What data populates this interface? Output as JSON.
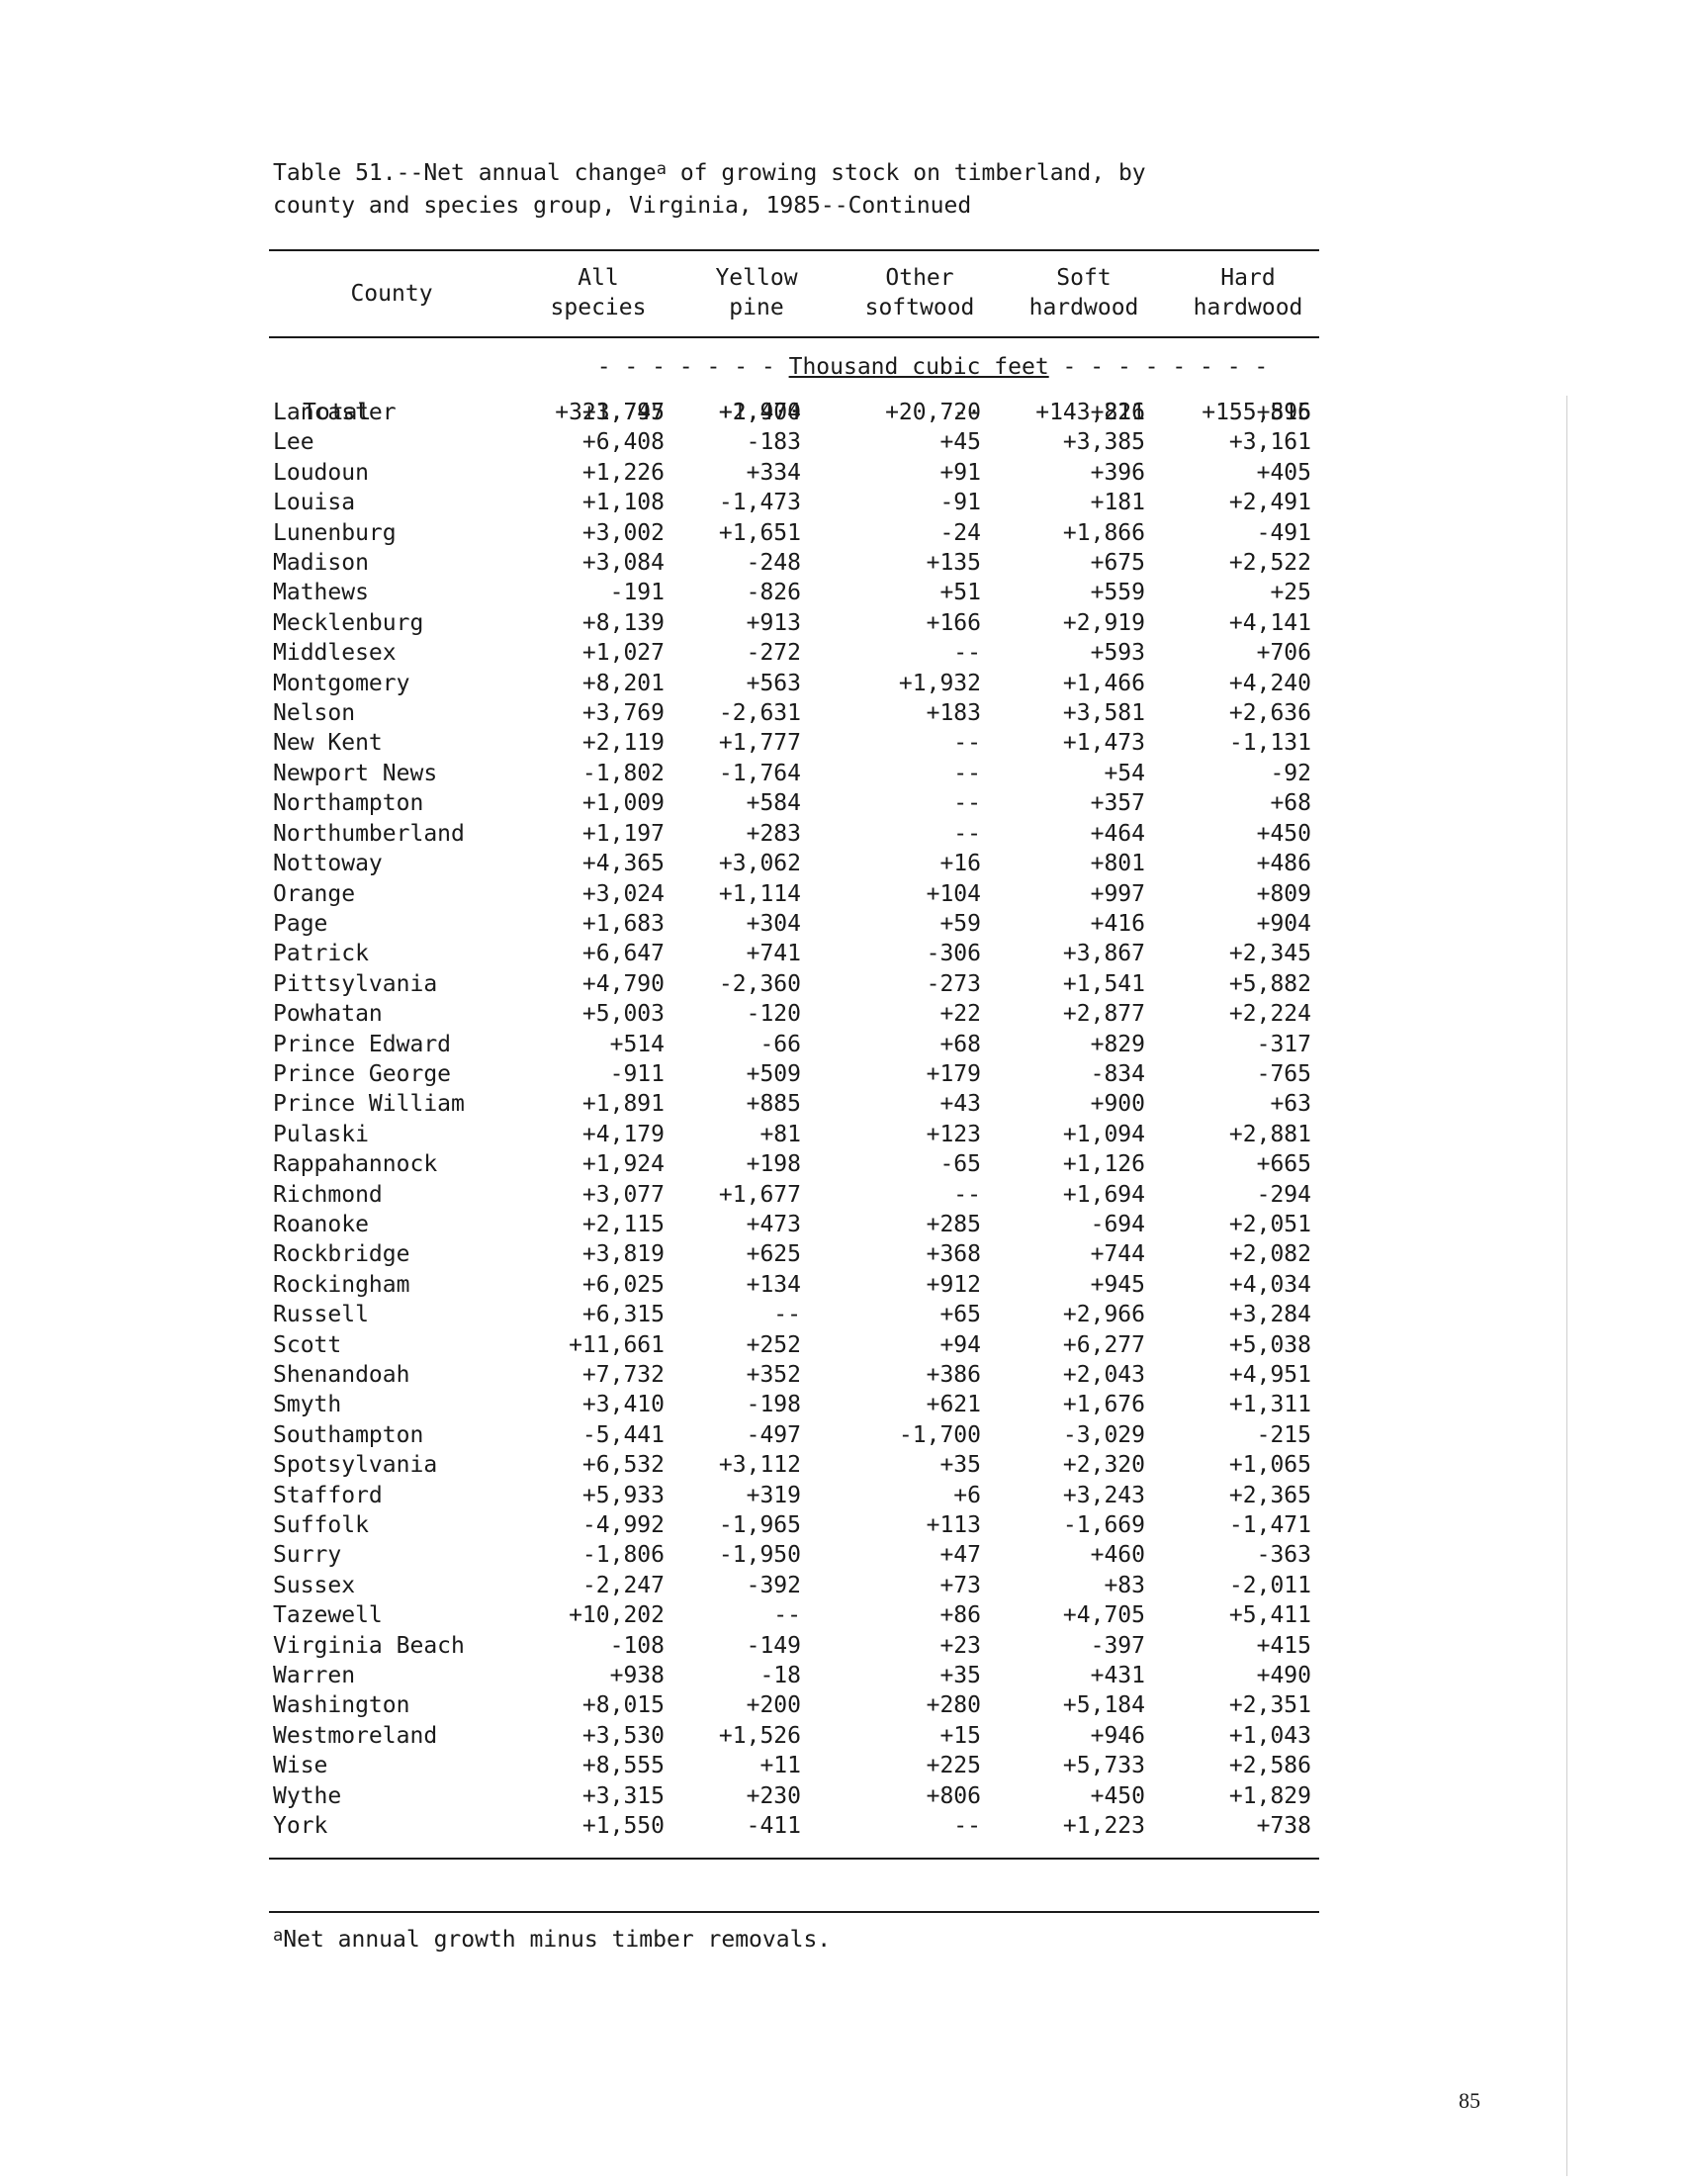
{
  "title": {
    "part1": "Table 51.--Net annual change",
    "superscript": "a",
    "part2": " of growing stock on timberland, by",
    "line2": "county and species group, Virginia, 1985--Continued"
  },
  "columns": {
    "county": "County",
    "all_species": [
      "All",
      "species"
    ],
    "yellow_pine": [
      "Yellow",
      "pine"
    ],
    "other_softwood": [
      "Other",
      "softwood"
    ],
    "soft_hardwood": [
      "Soft",
      "hardwood"
    ],
    "hard_hardwood": [
      "Hard",
      "hardwood"
    ]
  },
  "unit": {
    "prefix": "- - - - - - - ",
    "label": "Thousand cubic feet",
    "suffix": " - - - - - - - -"
  },
  "rows": [
    [
      "Lancaster",
      "+3,745",
      "+2,404",
      "--",
      "+826",
      "+515"
    ],
    [
      "Lee",
      "+6,408",
      "-183",
      "+45",
      "+3,385",
      "+3,161"
    ],
    [
      "Loudoun",
      "+1,226",
      "+334",
      "+91",
      "+396",
      "+405"
    ],
    [
      "Louisa",
      "+1,108",
      "-1,473",
      "-91",
      "+181",
      "+2,491"
    ],
    [
      "Lunenburg",
      "+3,002",
      "+1,651",
      "-24",
      "+1,866",
      "-491"
    ],
    [
      "Madison",
      "+3,084",
      "-248",
      "+135",
      "+675",
      "+2,522"
    ],
    [
      "Mathews",
      "-191",
      "-826",
      "+51",
      "+559",
      "+25"
    ],
    [
      "Mecklenburg",
      "+8,139",
      "+913",
      "+166",
      "+2,919",
      "+4,141"
    ],
    [
      "Middlesex",
      "+1,027",
      "-272",
      "--",
      "+593",
      "+706"
    ],
    [
      "Montgomery",
      "+8,201",
      "+563",
      "+1,932",
      "+1,466",
      "+4,240"
    ],
    [
      "Nelson",
      "+3,769",
      "-2,631",
      "+183",
      "+3,581",
      "+2,636"
    ],
    [
      "New Kent",
      "+2,119",
      "+1,777",
      "--",
      "+1,473",
      "-1,131"
    ],
    [
      "Newport News",
      "-1,802",
      "-1,764",
      "--",
      "+54",
      "-92"
    ],
    [
      "Northampton",
      "+1,009",
      "+584",
      "--",
      "+357",
      "+68"
    ],
    [
      "Northumberland",
      "+1,197",
      "+283",
      "--",
      "+464",
      "+450"
    ],
    [
      "Nottoway",
      "+4,365",
      "+3,062",
      "+16",
      "+801",
      "+486"
    ],
    [
      "Orange",
      "+3,024",
      "+1,114",
      "+104",
      "+997",
      "+809"
    ],
    [
      "Page",
      "+1,683",
      "+304",
      "+59",
      "+416",
      "+904"
    ],
    [
      "Patrick",
      "+6,647",
      "+741",
      "-306",
      "+3,867",
      "+2,345"
    ],
    [
      "Pittsylvania",
      "+4,790",
      "-2,360",
      "-273",
      "+1,541",
      "+5,882"
    ],
    [
      "Powhatan",
      "+5,003",
      "-120",
      "+22",
      "+2,877",
      "+2,224"
    ],
    [
      "Prince Edward",
      "+514",
      "-66",
      "+68",
      "+829",
      "-317"
    ],
    [
      "Prince George",
      "-911",
      "+509",
      "+179",
      "-834",
      "-765"
    ],
    [
      "Prince William",
      "+1,891",
      "+885",
      "+43",
      "+900",
      "+63"
    ],
    [
      "Pulaski",
      "+4,179",
      "+81",
      "+123",
      "+1,094",
      "+2,881"
    ],
    [
      "Rappahannock",
      "+1,924",
      "+198",
      "-65",
      "+1,126",
      "+665"
    ],
    [
      "Richmond",
      "+3,077",
      "+1,677",
      "--",
      "+1,694",
      "-294"
    ],
    [
      "Roanoke",
      "+2,115",
      "+473",
      "+285",
      "-694",
      "+2,051"
    ],
    [
      "Rockbridge",
      "+3,819",
      "+625",
      "+368",
      "+744",
      "+2,082"
    ],
    [
      "Rockingham",
      "+6,025",
      "+134",
      "+912",
      "+945",
      "+4,034"
    ],
    [
      "Russell",
      "+6,315",
      "--",
      "+65",
      "+2,966",
      "+3,284"
    ],
    [
      "Scott",
      "+11,661",
      "+252",
      "+94",
      "+6,277",
      "+5,038"
    ],
    [
      "Shenandoah",
      "+7,732",
      "+352",
      "+386",
      "+2,043",
      "+4,951"
    ],
    [
      "Smyth",
      "+3,410",
      "-198",
      "+621",
      "+1,676",
      "+1,311"
    ],
    [
      "Southampton",
      "-5,441",
      "-497",
      "-1,700",
      "-3,029",
      "-215"
    ],
    [
      "Spotsylvania",
      "+6,532",
      "+3,112",
      "+35",
      "+2,320",
      "+1,065"
    ],
    [
      "Stafford",
      "+5,933",
      "+319",
      "+6",
      "+3,243",
      "+2,365"
    ],
    [
      "Suffolk",
      "-4,992",
      "-1,965",
      "+113",
      "-1,669",
      "-1,471"
    ],
    [
      "Surry",
      "-1,806",
      "-1,950",
      "+47",
      "+460",
      "-363"
    ],
    [
      "Sussex",
      "-2,247",
      "-392",
      "+73",
      "+83",
      "-2,011"
    ],
    [
      "Tazewell",
      "+10,202",
      "--",
      "+86",
      "+4,705",
      "+5,411"
    ],
    [
      "Virginia Beach",
      "-108",
      "-149",
      "+23",
      "-397",
      "+415"
    ],
    [
      "Warren",
      "+938",
      "-18",
      "+35",
      "+431",
      "+490"
    ],
    [
      "Washington",
      "+8,015",
      "+200",
      "+280",
      "+5,184",
      "+2,351"
    ],
    [
      "Westmoreland",
      "+3,530",
      "+1,526",
      "+15",
      "+946",
      "+1,043"
    ],
    [
      "Wise",
      "+8,555",
      "+11",
      "+225",
      "+5,733",
      "+2,586"
    ],
    [
      "Wythe",
      "+3,315",
      "+230",
      "+806",
      "+450",
      "+1,829"
    ],
    [
      "York",
      "+1,550",
      "-411",
      "--",
      "+1,223",
      "+738"
    ]
  ],
  "total": [
    "Total",
    "+321,797",
    "+1,970",
    "+20,720",
    "+143,211",
    "+155,896"
  ],
  "footnote": {
    "superscript": "a",
    "text": "Net annual growth minus timber removals."
  },
  "page_number": "85"
}
